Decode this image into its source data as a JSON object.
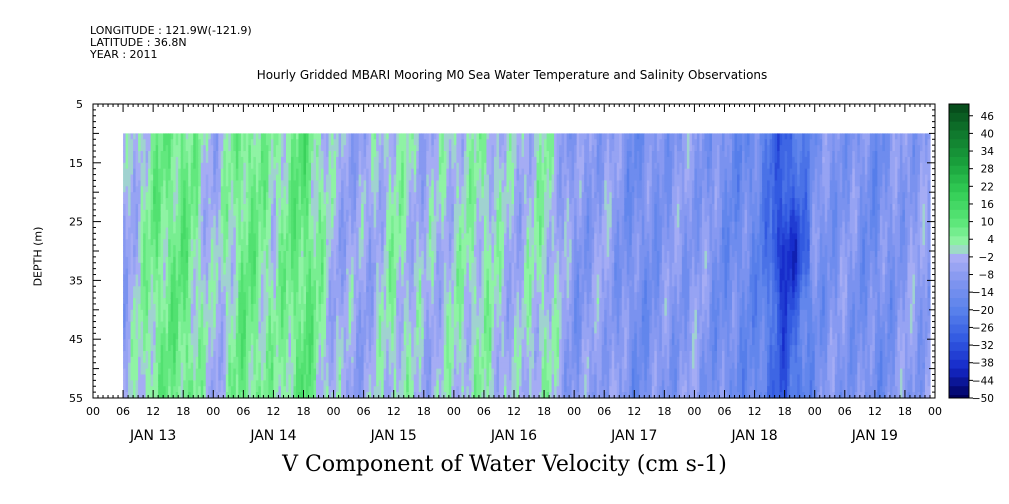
{
  "header": {
    "longitude": "LONGITUDE : 121.9W(-121.9)",
    "latitude": "LATITUDE : 36.8N",
    "year": "YEAR : 2011"
  },
  "chart_data": {
    "type": "heatmap",
    "title": "Hourly Gridded MBARI Mooring M0 Sea Water Temperature and Salinity Observations",
    "ylabel": "DEPTH (m)",
    "xlabel": "V Component of Water Velocity (cm s-1)",
    "ylim": [
      55,
      5
    ],
    "y_ticks": [
      5,
      15,
      25,
      35,
      45,
      55
    ],
    "x_hour_ticks": [
      "00",
      "06",
      "12",
      "18",
      "00",
      "06",
      "12",
      "18",
      "00",
      "06",
      "12",
      "18",
      "00",
      "06",
      "12",
      "18",
      "00",
      "06",
      "12",
      "18",
      "00",
      "06",
      "12",
      "18",
      "00",
      "06",
      "12",
      "18",
      "00"
    ],
    "x_day_labels": [
      "JAN 13",
      "JAN 14",
      "JAN 15",
      "JAN 16",
      "JAN 17",
      "JAN 18",
      "JAN 19"
    ],
    "data_depth_range": [
      10,
      55
    ],
    "data_time_range_hours_from_jan13_00": [
      6,
      167
    ],
    "colorbar": {
      "labels": [
        46,
        40,
        34,
        28,
        22,
        16,
        10,
        4,
        -2,
        -8,
        -14,
        -20,
        -26,
        -32,
        -38,
        -44,
        -50
      ],
      "range": [
        -50,
        50
      ],
      "step": 3
    },
    "series": [
      {
        "name": "",
        "values_by_time_approx": [
          {
            "t": "JAN 13 06",
            "v": -6
          },
          {
            "t": "JAN 13 12",
            "v": 6
          },
          {
            "t": "JAN 13 18",
            "v": 8
          },
          {
            "t": "JAN 14 00",
            "v": -4
          },
          {
            "t": "JAN 14 06",
            "v": 8
          },
          {
            "t": "JAN 14 12",
            "v": 2
          },
          {
            "t": "JAN 14 18",
            "v": 10
          },
          {
            "t": "JAN 15 00",
            "v": -4
          },
          {
            "t": "JAN 15 06",
            "v": -6
          },
          {
            "t": "JAN 15 12",
            "v": 2
          },
          {
            "t": "JAN 15 18",
            "v": -4
          },
          {
            "t": "JAN 16 00",
            "v": 0
          },
          {
            "t": "JAN 16 06",
            "v": 2
          },
          {
            "t": "JAN 16 12",
            "v": -4
          },
          {
            "t": "JAN 16 18",
            "v": 2
          },
          {
            "t": "JAN 17 00",
            "v": -10
          },
          {
            "t": "JAN 17 06",
            "v": -6
          },
          {
            "t": "JAN 17 12",
            "v": -14
          },
          {
            "t": "JAN 17 18",
            "v": -10
          },
          {
            "t": "JAN 18 00",
            "v": -8
          },
          {
            "t": "JAN 18 06",
            "v": -14
          },
          {
            "t": "JAN 18 12",
            "v": -16
          },
          {
            "t": "JAN 18 18",
            "v": -30
          },
          {
            "t": "JAN 19 00",
            "v": -12
          },
          {
            "t": "JAN 19 06",
            "v": -10
          },
          {
            "t": "JAN 19 12",
            "v": -14
          },
          {
            "t": "JAN 19 18",
            "v": -8
          }
        ]
      }
    ]
  }
}
